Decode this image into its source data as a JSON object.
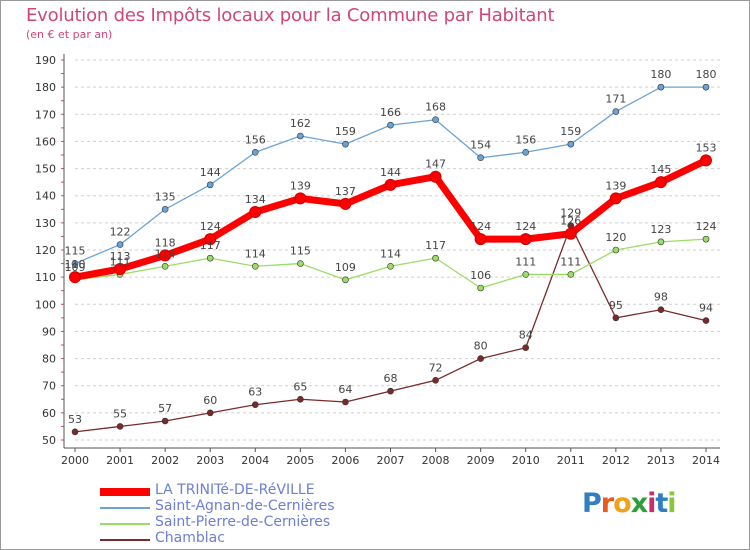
{
  "title": "Evolution des Impôts locaux pour la Commune par Habitant",
  "subtitle": "(en € et par an)",
  "logo": "Proxiti",
  "chart_data": {
    "type": "line",
    "title": "Evolution des Impôts locaux pour la Commune par Habitant",
    "subtitle": "(en € et par an)",
    "xlabel": "",
    "ylabel": "",
    "x": [
      "2000",
      "2001",
      "2002",
      "2003",
      "2004",
      "2005",
      "2006",
      "2007",
      "2008",
      "2009",
      "2010",
      "2011",
      "2012",
      "2013",
      "2014"
    ],
    "ylim": [
      50,
      190
    ],
    "yticks": [
      50,
      60,
      70,
      80,
      90,
      100,
      110,
      120,
      130,
      140,
      150,
      160,
      170,
      180,
      190
    ],
    "grid": "horizontal dashed",
    "legend_position": "bottom-left",
    "series": [
      {
        "name": "LA TRINITé-DE-RéVILLE",
        "color": "#ff0000",
        "values": [
          110,
          113,
          118,
          124,
          134,
          139,
          137,
          144,
          147,
          124,
          124,
          126,
          139,
          145,
          153
        ]
      },
      {
        "name": "Saint-Agnan-de-Cernières",
        "color": "#6aa3d4",
        "values": [
          115,
          122,
          135,
          144,
          156,
          162,
          159,
          166,
          168,
          154,
          156,
          159,
          171,
          180,
          180
        ]
      },
      {
        "name": "Saint-Pierre-de-Cernières",
        "color": "#99dd66",
        "values": [
          109,
          111,
          114,
          117,
          114,
          115,
          109,
          114,
          117,
          106,
          111,
          111,
          120,
          123,
          124
        ]
      },
      {
        "name": "Chamblac",
        "color": "#7a2a2a",
        "values": [
          53,
          55,
          57,
          60,
          63,
          65,
          64,
          68,
          72,
          80,
          84,
          129,
          95,
          98,
          94
        ]
      }
    ]
  }
}
